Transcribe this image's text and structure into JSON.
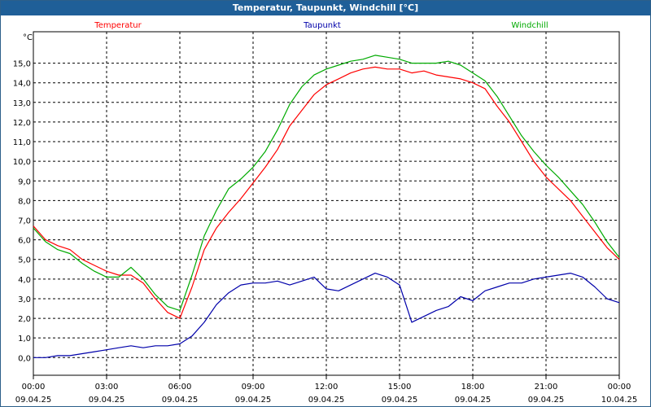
{
  "window": {
    "title": "Temperatur, Taupunkt, Windchill [°C]"
  },
  "chart_data": {
    "type": "line",
    "title": "Temperatur, Taupunkt, Windchill [°C]",
    "ylabel": "°C",
    "ylim": [
      -0.9,
      16.6
    ],
    "yticks": [
      "0.0",
      "1.0",
      "2.0",
      "3.0",
      "4.0",
      "5.0",
      "6.0",
      "7.0",
      "8.0",
      "9.0",
      "10.0",
      "11.0",
      "12.0",
      "13.0",
      "14.0",
      "15.0"
    ],
    "ytick_labels": [
      "0,0",
      "1,0",
      "2,0",
      "3,0",
      "4,0",
      "5,0",
      "6,0",
      "7,0",
      "8,0",
      "9,0",
      "10,0",
      "11,0",
      "12,0",
      "13,0",
      "14,0",
      "15,0"
    ],
    "xlim": [
      0,
      24
    ],
    "xticks": [
      {
        "x": 0,
        "time": "00:00",
        "date": "09.04.25"
      },
      {
        "x": 3,
        "time": "03:00",
        "date": "09.04.25"
      },
      {
        "x": 6,
        "time": "06:00",
        "date": "09.04.25"
      },
      {
        "x": 9,
        "time": "09:00",
        "date": "09.04.25"
      },
      {
        "x": 12,
        "time": "12:00",
        "date": "09.04.25"
      },
      {
        "x": 15,
        "time": "15:00",
        "date": "09.04.25"
      },
      {
        "x": 18,
        "time": "18:00",
        "date": "09.04.25"
      },
      {
        "x": 21,
        "time": "21:00",
        "date": "09.04.25"
      },
      {
        "x": 24,
        "time": "00:00",
        "date": "10.04.25"
      }
    ],
    "grid": true,
    "legend_position": "top",
    "series": [
      {
        "name": "Temperatur",
        "color": "#ff0000",
        "x": [
          0,
          0.5,
          1,
          1.5,
          2,
          2.5,
          3,
          3.5,
          4,
          4.5,
          5,
          5.5,
          6,
          6.5,
          7,
          7.5,
          8,
          8.5,
          9,
          9.5,
          10,
          10.5,
          11,
          11.5,
          12,
          12.5,
          13,
          13.5,
          14,
          14.5,
          15,
          15.5,
          16,
          16.5,
          17,
          17.5,
          18,
          18.5,
          19,
          19.5,
          20,
          20.5,
          21,
          21.5,
          22,
          22.5,
          23,
          23.5,
          24
        ],
        "values": [
          6.7,
          6.0,
          5.7,
          5.5,
          5.0,
          4.7,
          4.4,
          4.2,
          4.2,
          3.8,
          3.0,
          2.3,
          2.0,
          3.6,
          5.5,
          6.6,
          7.4,
          8.1,
          8.9,
          9.7,
          10.6,
          11.8,
          12.6,
          13.4,
          13.9,
          14.2,
          14.5,
          14.7,
          14.8,
          14.7,
          14.7,
          14.5,
          14.6,
          14.4,
          14.3,
          14.2,
          14.0,
          13.7,
          12.8,
          12.0,
          11.0,
          10.0,
          9.2,
          8.6,
          8.0,
          7.2,
          6.4,
          5.6,
          5.0
        ]
      },
      {
        "name": "Taupunkt",
        "color": "#0000aa",
        "x": [
          0,
          0.5,
          1,
          1.5,
          2,
          2.5,
          3,
          3.5,
          4,
          4.5,
          5,
          5.5,
          6,
          6.5,
          7,
          7.5,
          8,
          8.5,
          9,
          9.5,
          10,
          10.5,
          11,
          11.5,
          12,
          12.5,
          13,
          13.5,
          14,
          14.5,
          15,
          15.5,
          16,
          16.5,
          17,
          17.5,
          18,
          18.5,
          19,
          19.5,
          20,
          20.5,
          21,
          21.5,
          22,
          22.5,
          23,
          23.5,
          24
        ],
        "values": [
          0.0,
          0.0,
          0.1,
          0.1,
          0.2,
          0.3,
          0.4,
          0.5,
          0.6,
          0.5,
          0.6,
          0.6,
          0.7,
          1.1,
          1.8,
          2.7,
          3.3,
          3.7,
          3.8,
          3.8,
          3.9,
          3.7,
          3.9,
          4.1,
          3.5,
          3.4,
          3.7,
          4.0,
          4.3,
          4.1,
          3.7,
          1.8,
          2.1,
          2.4,
          2.6,
          3.1,
          2.9,
          3.4,
          3.6,
          3.8,
          3.8,
          4.0,
          4.1,
          4.2,
          4.3,
          4.1,
          3.6,
          3.0,
          2.8
        ]
      },
      {
        "name": "Windchill",
        "color": "#00aa00",
        "x": [
          0,
          0.5,
          1,
          1.5,
          2,
          2.5,
          3,
          3.5,
          4,
          4.5,
          5,
          5.5,
          6,
          6.5,
          7,
          7.5,
          8,
          8.5,
          9,
          9.5,
          10,
          10.5,
          11,
          11.5,
          12,
          12.5,
          13,
          13.5,
          14,
          14.5,
          15,
          15.5,
          16,
          16.5,
          17,
          17.5,
          18,
          18.5,
          19,
          19.5,
          20,
          20.5,
          21,
          21.5,
          22,
          22.5,
          23,
          23.5,
          24
        ],
        "values": [
          6.6,
          5.9,
          5.5,
          5.3,
          4.8,
          4.4,
          4.1,
          4.1,
          4.6,
          4.0,
          3.2,
          2.6,
          2.4,
          4.2,
          6.2,
          7.5,
          8.6,
          9.1,
          9.7,
          10.5,
          11.6,
          12.9,
          13.8,
          14.4,
          14.7,
          14.9,
          15.1,
          15.2,
          15.4,
          15.3,
          15.2,
          15.0,
          15.0,
          15.0,
          15.1,
          14.9,
          14.5,
          14.1,
          13.3,
          12.3,
          11.3,
          10.5,
          9.8,
          9.2,
          8.5,
          7.8,
          6.9,
          5.9,
          5.1
        ]
      }
    ]
  }
}
